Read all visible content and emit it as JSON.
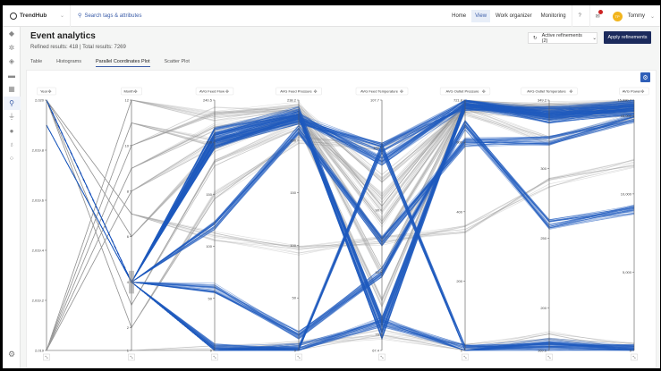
{
  "app": {
    "name": "TrendHub",
    "search_placeholder": "Search tags & attributes"
  },
  "nav": {
    "items": [
      "Home",
      "View",
      "Work organizer",
      "Monitoring"
    ],
    "active": "View",
    "user": "Tommy",
    "avatar_initials": "TP"
  },
  "sidebar": {
    "icons": [
      "tag-icon",
      "network-icon",
      "layers-icon",
      "chat-icon",
      "grid-icon",
      "search-icon",
      "filter-icon",
      "circle-icon",
      "bulb-icon",
      "scatter-icon"
    ],
    "active": 5
  },
  "page": {
    "title": "Event analytics",
    "subtitle": "Refined results: 418 | Total results: 7269",
    "refinements": "Active refinements (2)",
    "apply": "Apply refinements"
  },
  "tabs": [
    "Table",
    "Histograms",
    "Parallel Coordinates Plot",
    "Scatter Plot"
  ],
  "active_tab": "Parallel Coordinates Plot",
  "colors": {
    "accent": "#2f5fb8",
    "highlight": "#1f5bbf",
    "muted": "#9a9a9a",
    "primary_button": "#1b2a5c"
  },
  "chart_data": {
    "type": "parallel-coordinates",
    "axes": [
      {
        "label": "Year",
        "min": 2019,
        "max": 2020,
        "ticks": [
          2019,
          2019.2,
          2019.4,
          2019.6,
          2019.8,
          2020
        ],
        "tick_labels": [
          "2,019",
          "2,019.2",
          "2,019.4",
          "2,019.6",
          "2,019.8",
          "2,020"
        ]
      },
      {
        "label": "Month",
        "min": 1,
        "max": 12,
        "ticks": [
          1,
          2,
          4,
          6,
          8,
          10,
          12
        ],
        "tick_labels": [
          "1",
          "2",
          "4",
          "6",
          "8",
          "10",
          "12"
        ],
        "brush": [
          3.5,
          4.5
        ]
      },
      {
        "label": "AVG Feed Flow",
        "min": 0,
        "max": 240.5,
        "ticks": [
          0,
          50,
          100,
          150,
          200,
          240.5
        ],
        "tick_labels": [
          "0",
          "50",
          "100",
          "150",
          "200",
          "240.5"
        ]
      },
      {
        "label": "AVG Feed Pressure",
        "min": 0,
        "max": 238.2,
        "ticks": [
          0,
          50,
          100,
          150,
          200,
          238.2
        ],
        "tick_labels": [
          "0",
          "50",
          "100",
          "150",
          "200",
          "238.2"
        ]
      },
      {
        "label": "AVG Feed Temperature",
        "min": 67.4,
        "max": 107.7,
        "ticks": [
          67.4,
          70,
          80,
          90,
          100,
          107.7
        ],
        "tick_labels": [
          "67.4",
          "70",
          "80",
          "90",
          "100",
          "107.7"
        ]
      },
      {
        "label": "AVG Outlet Pressure",
        "min": 0,
        "max": 721.8,
        "ticks": [
          0,
          200,
          400,
          600,
          721.8
        ],
        "tick_labels": [
          "0",
          "200",
          "400",
          "600",
          "721.8"
        ]
      },
      {
        "label": "AVG Outlet Temperature",
        "min": 169.6,
        "max": 349.2,
        "ticks": [
          169.6,
          200,
          250,
          300,
          349.2
        ],
        "tick_labels": [
          "169.6",
          "200",
          "250",
          "300",
          "349.2"
        ]
      },
      {
        "label": "AVG Power",
        "min": 0,
        "max": 15990.7,
        "ticks": [
          0,
          5000,
          10000,
          15000,
          15990.7
        ],
        "tick_labels": [
          "0",
          "5,000",
          "10,000",
          "15,000",
          "15,990.7"
        ]
      }
    ],
    "highlighted": [
      [
        2020,
        4,
        205,
        225,
        70,
        715,
        340,
        15600
      ],
      [
        2020,
        4,
        200,
        220,
        100,
        710,
        338,
        15400
      ],
      [
        2020,
        4,
        210,
        228,
        72,
        705,
        342,
        15700
      ],
      [
        2020,
        4,
        198,
        222,
        98,
        712,
        336,
        15300
      ],
      [
        2020,
        4,
        0,
        2,
        72,
        2,
        172,
        50
      ],
      [
        2020,
        4,
        2,
        0,
        100,
        0,
        175,
        100
      ],
      [
        2019.9,
        4,
        120,
        210,
        85,
        600,
        320,
        14800
      ],
      [
        2020,
        4,
        60,
        15,
        80,
        650,
        260,
        9000
      ]
    ],
    "background": [
      [
        2019,
        12,
        225,
        230,
        95,
        700,
        345,
        15800
      ],
      [
        2019,
        11,
        200,
        220,
        85,
        700,
        340,
        15500
      ],
      [
        2019,
        10,
        230,
        232,
        90,
        715,
        345,
        15900
      ],
      [
        2019,
        9,
        215,
        226,
        80,
        705,
        342,
        15600
      ],
      [
        2019,
        8,
        200,
        220,
        92,
        710,
        340,
        15400
      ],
      [
        2020,
        6,
        195,
        224,
        88,
        712,
        341,
        15500
      ],
      [
        2020,
        3,
        180,
        215,
        75,
        700,
        338,
        15200
      ],
      [
        2020,
        2,
        150,
        200,
        100,
        690,
        320,
        15000
      ],
      [
        2019,
        1,
        0,
        5,
        70,
        5,
        180,
        200
      ],
      [
        2020,
        7,
        110,
        95,
        85,
        350,
        290,
        12000
      ]
    ]
  }
}
